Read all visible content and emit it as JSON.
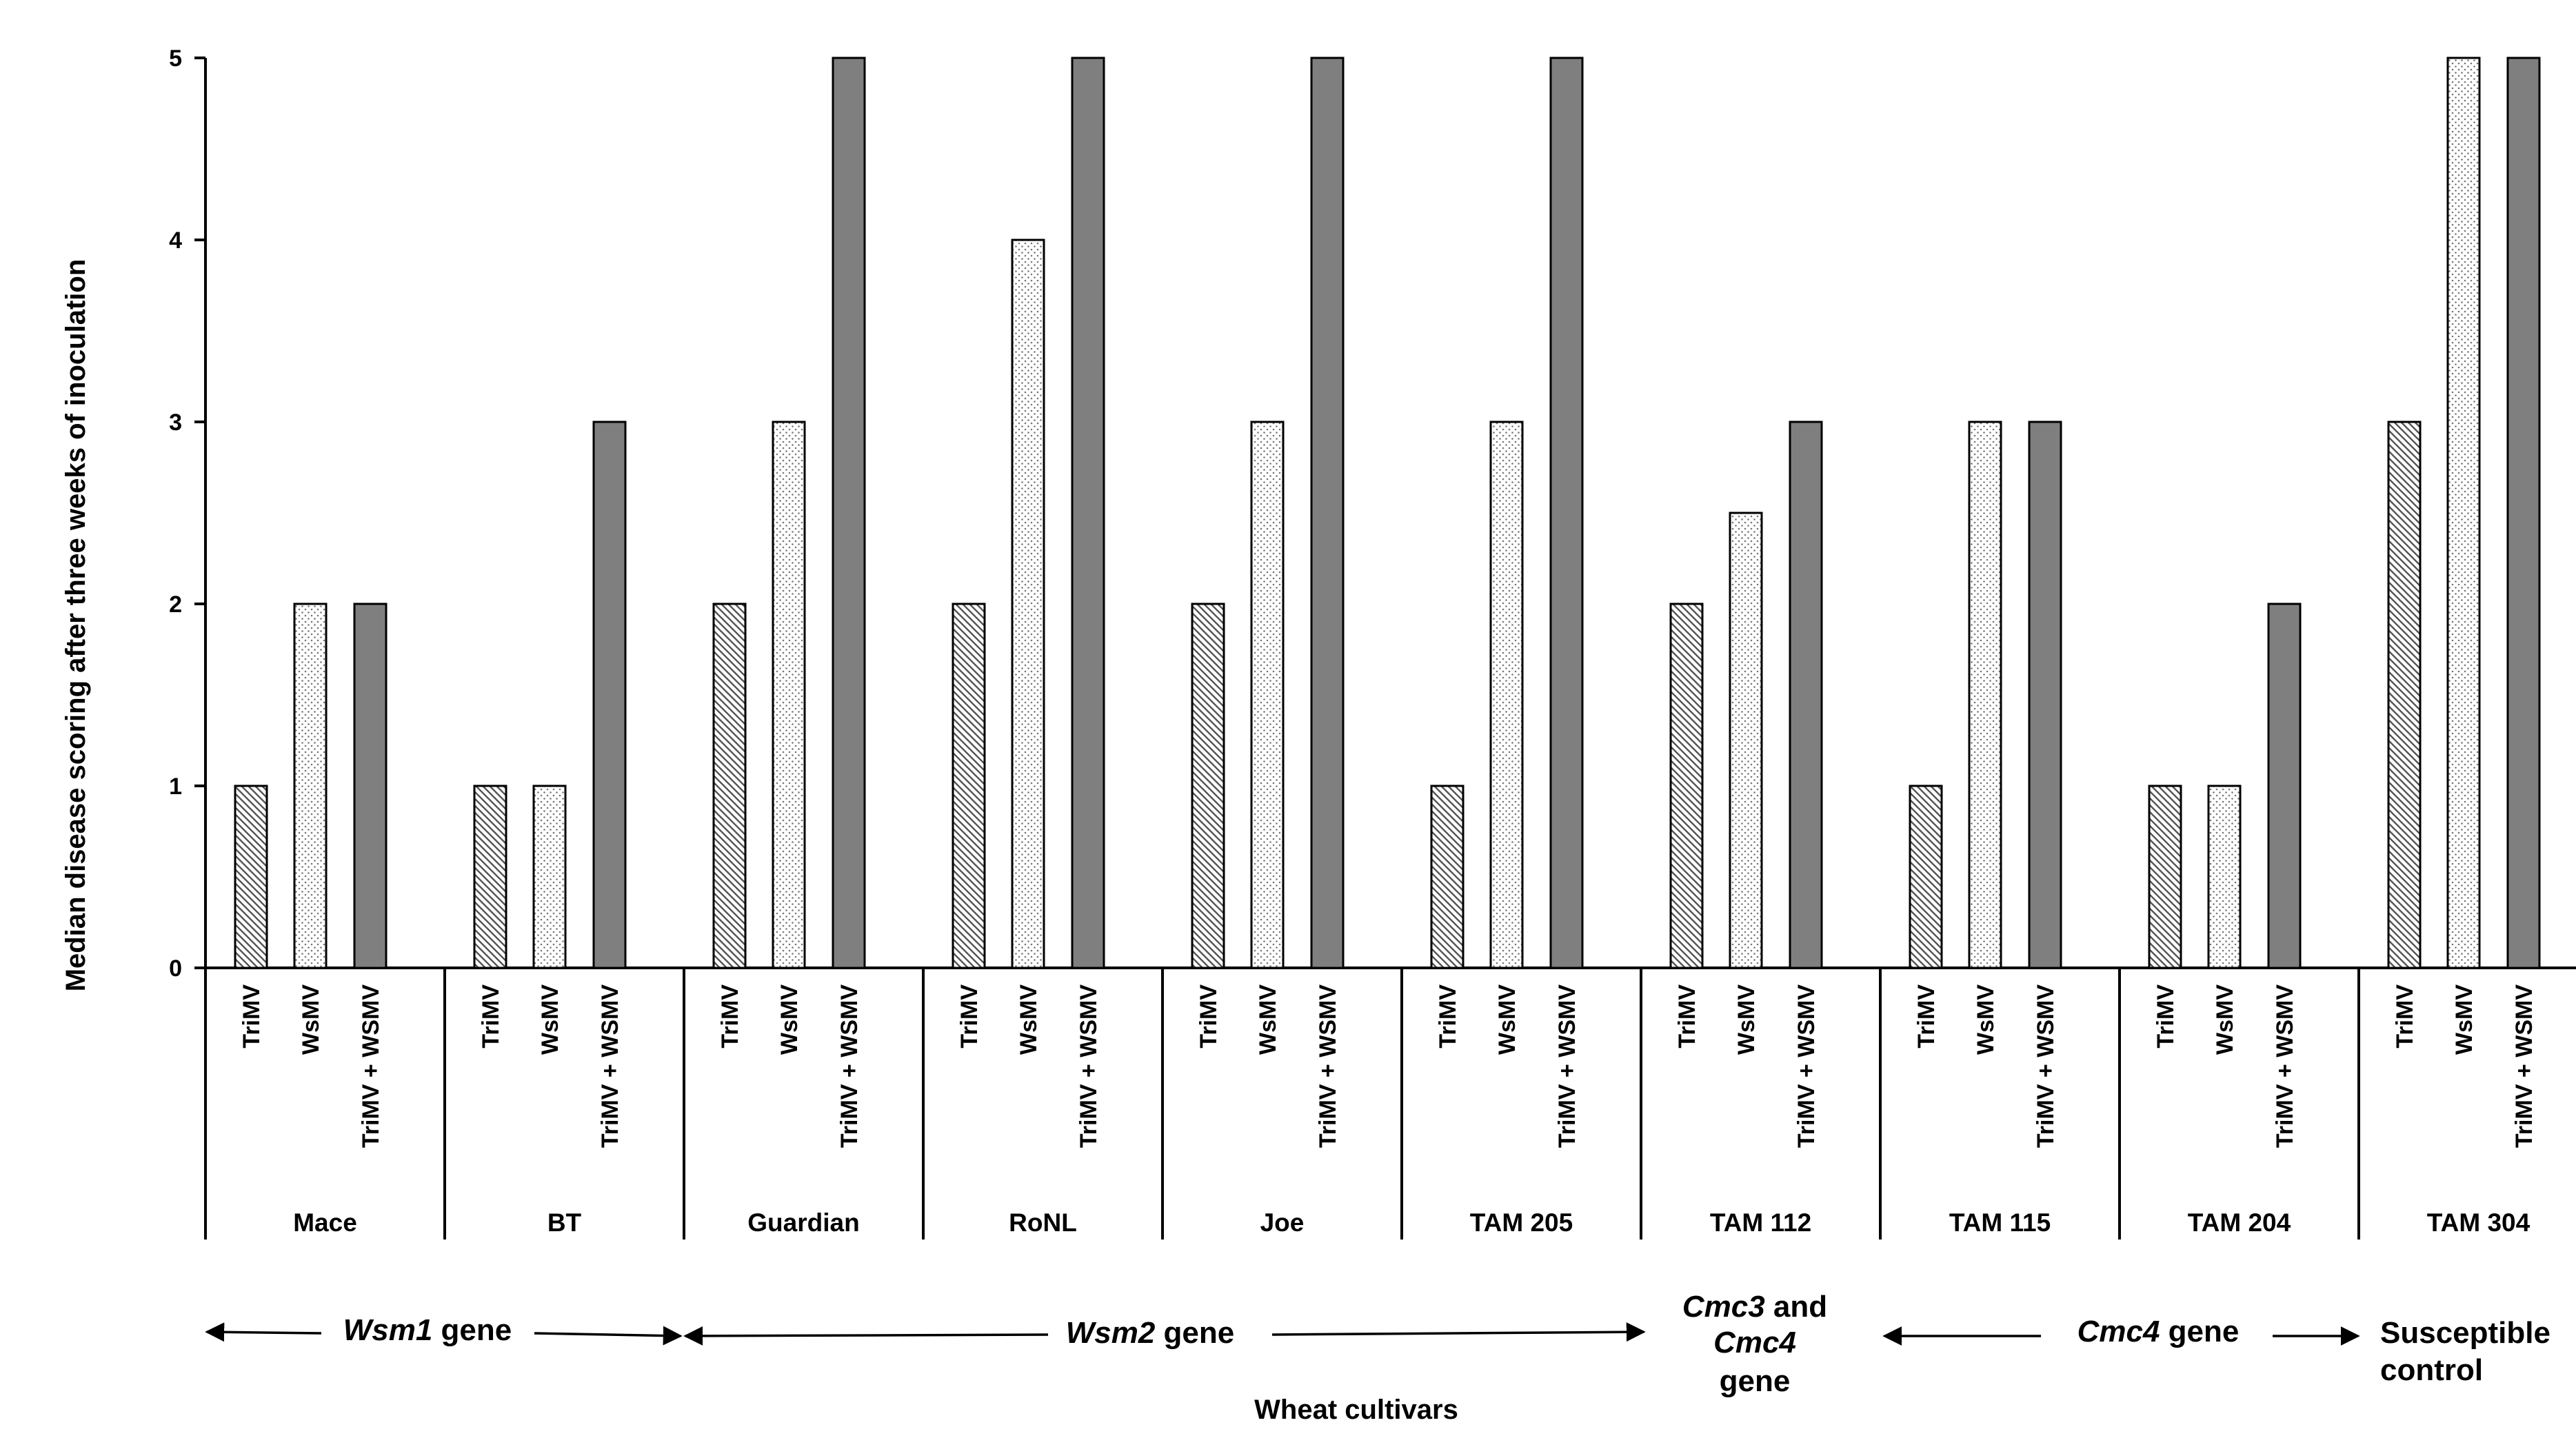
{
  "chart_data": {
    "type": "bar",
    "title": "",
    "xlabel": "Wheat cultivars",
    "ylabel": "Median disease scoring after three weeks of inoculation",
    "ylim": [
      0,
      5
    ],
    "yticks": [
      "0",
      "1",
      "2",
      "3",
      "4",
      "5"
    ],
    "grid": false,
    "bar_labels": [
      "TriMV",
      "WsMV",
      "TriMV + WSMV"
    ],
    "categories": [
      "Mace",
      "BT",
      "Guardian",
      "RoNL",
      "Joe",
      "TAM 205",
      "TAM 112",
      "TAM 115",
      "TAM 204",
      "TAM 304"
    ],
    "series": [
      {
        "name": "TriMV",
        "pattern": "diagonal-hatch",
        "values": [
          1,
          1,
          2,
          2,
          2,
          1,
          2,
          1,
          1,
          3
        ]
      },
      {
        "name": "WsMV",
        "pattern": "dotted",
        "values": [
          2,
          1,
          3,
          4,
          3,
          3,
          2.5,
          3,
          1,
          5
        ]
      },
      {
        "name": "TriMV + WSMV",
        "pattern": "solid",
        "color": "#7f7f7f",
        "values": [
          2,
          3,
          5,
          5,
          5,
          5,
          3,
          3,
          2,
          5
        ]
      }
    ],
    "gene_groups": [
      {
        "label_italic": "Wsm1",
        "label_rest": " gene",
        "cultivars": [
          "Mace",
          "BT"
        ]
      },
      {
        "label_italic": "Wsm2",
        "label_rest": " gene",
        "cultivars": [
          "Guardian",
          "RoNL",
          "Joe",
          "TAM 205"
        ]
      },
      {
        "lines": [
          [
            "Cmc3",
            " and"
          ],
          [
            "Cmc4",
            ""
          ],
          [
            "",
            "gene"
          ]
        ],
        "cultivars": [
          "TAM 112"
        ]
      },
      {
        "label_italic": "Cmc4",
        "label_rest": " gene",
        "cultivars": [
          "TAM 115",
          "TAM 204"
        ]
      },
      {
        "lines": [
          [
            "",
            "Susceptible"
          ],
          [
            "",
            "control"
          ]
        ],
        "cultivars": [
          "TAM 304"
        ]
      }
    ]
  }
}
